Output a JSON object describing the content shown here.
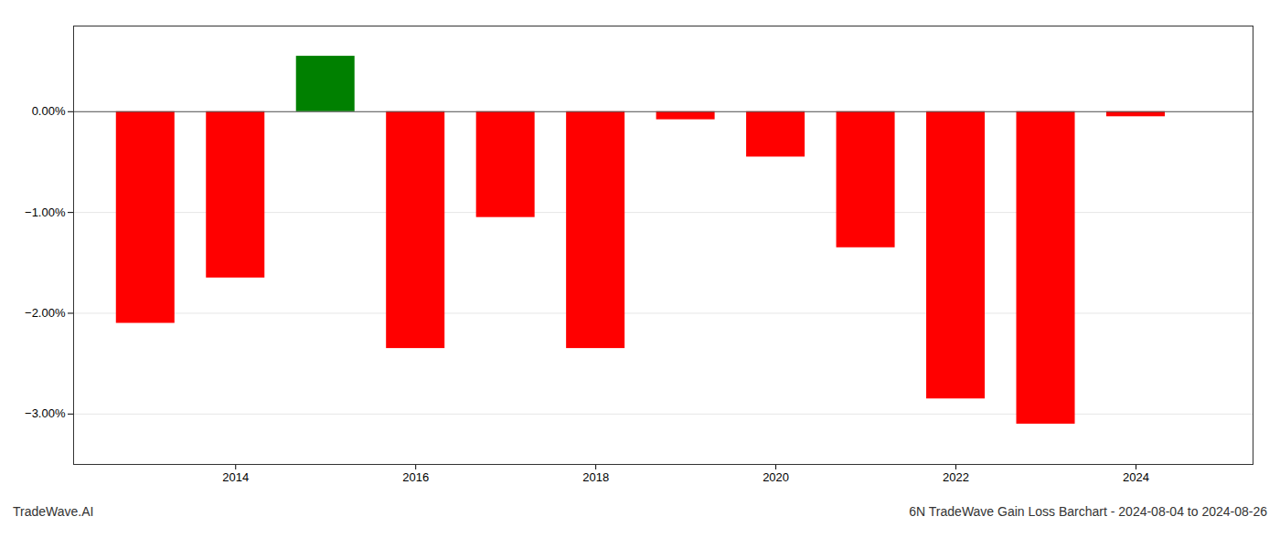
{
  "chart_data": {
    "type": "bar",
    "title": "6N TradeWave Gain Loss Barchart - 2024-08-04 to 2024-08-26",
    "annotations": [
      "TradeWave.AI"
    ],
    "x": [
      2013,
      2014,
      2015,
      2016,
      2017,
      2018,
      2019,
      2020,
      2021,
      2022,
      2023,
      2024
    ],
    "values": [
      -2.1,
      -1.65,
      0.55,
      -2.35,
      -1.05,
      -2.35,
      -0.08,
      -0.45,
      -1.35,
      -2.85,
      -3.1,
      -0.05
    ],
    "colors": [
      "#ff0000",
      "#ff0000",
      "#008000",
      "#ff0000",
      "#ff0000",
      "#ff0000",
      "#ff0000",
      "#ff0000",
      "#ff0000",
      "#ff0000",
      "#ff0000",
      "#ff0000"
    ],
    "xlim": [
      2012.2,
      2025.3
    ],
    "xticks": [
      2014,
      2016,
      2018,
      2020,
      2022,
      2024
    ],
    "ylim": [
      -3.5,
      0.85
    ],
    "yticks": [
      {
        "value": 0.0,
        "label": "0.00%"
      },
      {
        "value": -1.0,
        "label": "−1.00%"
      },
      {
        "value": -2.0,
        "label": "−2.00%"
      },
      {
        "value": -3.0,
        "label": "−3.00%"
      }
    ],
    "grid": true
  }
}
